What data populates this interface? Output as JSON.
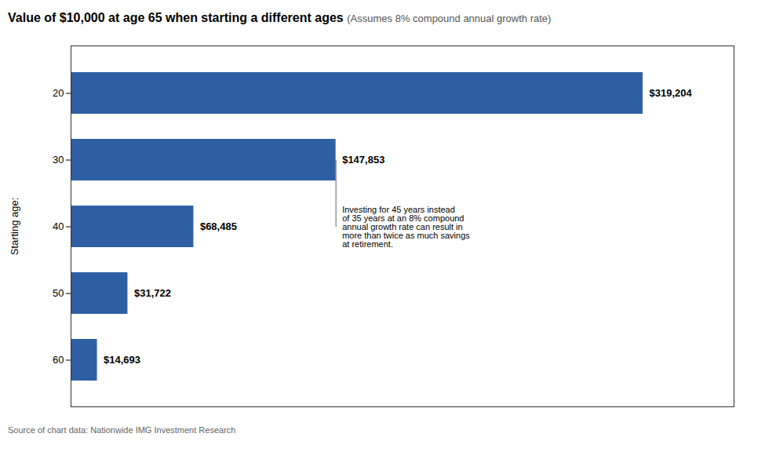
{
  "chart_data": {
    "type": "bar",
    "orientation": "horizontal",
    "title": "Value of $10,000 at age 65 when starting a different ages",
    "subtitle": "(Assumes 8% compound annual growth rate)",
    "ylabel": "Starting age:",
    "source": "Source of chart data: Nationwide IMG Investment Research",
    "categories": [
      "20",
      "30",
      "40",
      "50",
      "60"
    ],
    "values": [
      319204,
      147853,
      68485,
      31722,
      14693
    ],
    "value_labels": [
      "$319,204",
      "$147,853",
      "$68,485",
      "$31,722",
      "$14,693"
    ],
    "data_labels": true,
    "color": "#2e5fa3",
    "xlim": [
      0,
      370000
    ],
    "tick_labels": "y",
    "grid": false,
    "annotations": [
      {
        "text": "Investing for 45 years instead\nof 35 years at an 8% compound\nannual growth rate can result in\nmore than twice as much savings\nat retirement.",
        "category": "30"
      }
    ]
  }
}
